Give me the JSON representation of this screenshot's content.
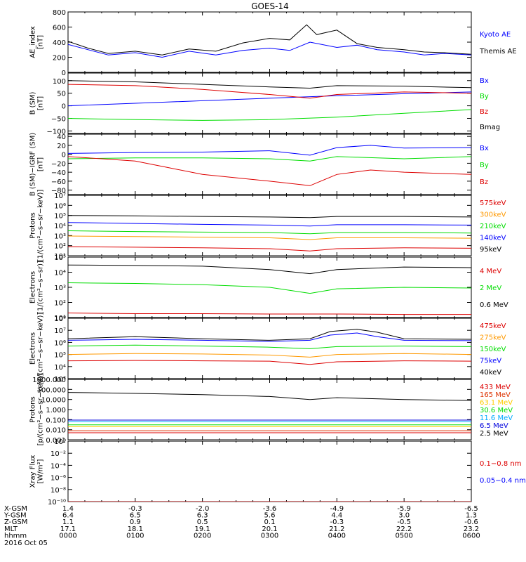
{
  "title": "GOES-14",
  "footer": {
    "rows": [
      {
        "label": "X-GSM",
        "values": [
          "1.4",
          "-0.3",
          "-2.0",
          "-3.6",
          "-4.9",
          "-5.9",
          "-6.5"
        ]
      },
      {
        "label": "Y-GSM",
        "values": [
          "6.4",
          "6.5",
          "6.3",
          "5.6",
          "4.4",
          "3.0",
          "1.3"
        ]
      },
      {
        "label": "Z-GSM",
        "values": [
          "1.1",
          "0.9",
          "0.5",
          "0.1",
          "-0.3",
          "-0.5",
          "-0.6"
        ]
      },
      {
        "label": "MLT",
        "values": [
          "17.1",
          "18.1",
          "19.1",
          "20.1",
          "21.2",
          "22.2",
          "23.2"
        ]
      },
      {
        "label": "hhmm",
        "values": [
          "0000",
          "0100",
          "0200",
          "0300",
          "0400",
          "0500",
          "0600"
        ]
      }
    ],
    "date": "2016 Oct 05"
  },
  "chart_data": [
    {
      "type": "line",
      "ylabel": "AE_index\n[nT]",
      "yscale": "linear",
      "ylim": [
        0,
        800
      ],
      "yticks": [
        0,
        200,
        400,
        600,
        800
      ],
      "yticklabels": [
        "0",
        "200",
        "400",
        "600",
        "800"
      ],
      "xlim": [
        0,
        6
      ],
      "series": [
        {
          "name": "Kyoto AE",
          "color": "#0000ff",
          "x": [
            0,
            0.3,
            0.6,
            1.0,
            1.4,
            1.8,
            2.2,
            2.6,
            3.0,
            3.3,
            3.6,
            4.0,
            4.3,
            4.6,
            5.0,
            5.3,
            5.6,
            6.0
          ],
          "values": [
            370,
            300,
            230,
            260,
            200,
            280,
            230,
            290,
            320,
            290,
            400,
            330,
            360,
            300,
            270,
            230,
            250,
            230
          ]
        },
        {
          "name": "Themis AE",
          "color": "#000000",
          "x": [
            0,
            0.3,
            0.6,
            1.0,
            1.4,
            1.8,
            2.2,
            2.6,
            3.0,
            3.3,
            3.55,
            3.7,
            4.0,
            4.3,
            4.6,
            5.0,
            5.3,
            5.6,
            6.0
          ],
          "values": [
            410,
            320,
            250,
            280,
            230,
            310,
            280,
            390,
            450,
            430,
            630,
            500,
            560,
            380,
            330,
            300,
            270,
            260,
            240
          ]
        }
      ]
    },
    {
      "type": "line",
      "ylabel": "B (SM)\n[nT]",
      "yscale": "linear",
      "ylim": [
        -110,
        130
      ],
      "yticks": [
        -100,
        -50,
        0,
        50,
        100
      ],
      "yticklabels": [
        "−100",
        "−50",
        "0",
        "50",
        "100"
      ],
      "xlim": [
        0,
        6
      ],
      "series": [
        {
          "name": "Bx",
          "color": "#0000ff",
          "x": [
            0,
            1,
            2,
            3,
            4,
            5,
            6
          ],
          "values": [
            0,
            10,
            20,
            30,
            40,
            48,
            55
          ]
        },
        {
          "name": "By",
          "color": "#00dd00",
          "x": [
            0,
            1,
            2,
            3,
            4,
            5,
            6
          ],
          "values": [
            -50,
            -55,
            -58,
            -55,
            -45,
            -30,
            -15
          ]
        },
        {
          "name": "Bz",
          "color": "#dd0000",
          "x": [
            0,
            1,
            2,
            3,
            3.6,
            4,
            5,
            6
          ],
          "values": [
            85,
            80,
            65,
            45,
            30,
            45,
            55,
            50
          ]
        },
        {
          "name": "Bmag",
          "color": "#000000",
          "x": [
            0,
            1,
            2,
            3,
            3.6,
            4,
            5,
            6
          ],
          "values": [
            100,
            95,
            85,
            75,
            70,
            80,
            78,
            72
          ]
        }
      ]
    },
    {
      "type": "line",
      "ylabel": "B (SM)−IGRF (SM)\n[nT]",
      "yscale": "linear",
      "ylim": [
        -90,
        45
      ],
      "yticks": [
        -80,
        -60,
        -40,
        -20,
        0,
        20,
        40
      ],
      "yticklabels": [
        "−80",
        "−60",
        "−40",
        "−20",
        "0",
        "20",
        "40"
      ],
      "xlim": [
        0,
        6
      ],
      "series": [
        {
          "name": "Bx",
          "color": "#0000ff",
          "x": [
            0,
            1,
            2,
            3,
            3.6,
            4,
            4.5,
            5,
            6
          ],
          "values": [
            2,
            4,
            5,
            8,
            -2,
            15,
            20,
            14,
            15
          ]
        },
        {
          "name": "By",
          "color": "#00dd00",
          "x": [
            0,
            1,
            2,
            3,
            3.6,
            4,
            5,
            6
          ],
          "values": [
            -10,
            -8,
            -8,
            -10,
            -15,
            -5,
            -10,
            -5
          ]
        },
        {
          "name": "Bz",
          "color": "#dd0000",
          "x": [
            0,
            0.5,
            1,
            1.5,
            2,
            3,
            3.6,
            4,
            4.5,
            5,
            6
          ],
          "values": [
            -5,
            -10,
            -15,
            -30,
            -45,
            -60,
            -70,
            -45,
            -35,
            -40,
            -45
          ]
        }
      ]
    },
    {
      "type": "line",
      "ylabel": "Protons\n[1/(cm²−s−sr−keV)]",
      "yscale": "log",
      "ylim": [
        10,
        10000000
      ],
      "yticks": [
        10,
        100,
        1000,
        10000,
        100000,
        1000000,
        10000000
      ],
      "yticklabels": [
        "10¹",
        "10²",
        "10³",
        "10⁴",
        "10⁵",
        "10⁶",
        "10⁷"
      ],
      "xlim": [
        0,
        6
      ],
      "series": [
        {
          "name": "575keV",
          "color": "#dd0000",
          "x": [
            0,
            1,
            2,
            3,
            3.6,
            4,
            5,
            6
          ],
          "values": [
            80,
            70,
            60,
            50,
            30,
            50,
            60,
            55
          ]
        },
        {
          "name": "300keV",
          "color": "#ff9900",
          "x": [
            0,
            1,
            2,
            3,
            3.6,
            4,
            5,
            6
          ],
          "values": [
            900,
            800,
            700,
            600,
            400,
            600,
            600,
            550
          ]
        },
        {
          "name": "210keV",
          "color": "#00dd00",
          "x": [
            0,
            1,
            2,
            3,
            3.6,
            4,
            5,
            6
          ],
          "values": [
            3000,
            2500,
            2200,
            2000,
            1500,
            2000,
            2000,
            1800
          ]
        },
        {
          "name": "140keV",
          "color": "#0000ff",
          "x": [
            0,
            1,
            2,
            3,
            3.6,
            4,
            5,
            6
          ],
          "values": [
            20000,
            16000,
            13000,
            11000,
            9000,
            12000,
            12000,
            11000
          ]
        },
        {
          "name": "95keV",
          "color": "#000000",
          "x": [
            0,
            1,
            2,
            3,
            3.6,
            4,
            5,
            6
          ],
          "values": [
            100000,
            90000,
            80000,
            70000,
            60000,
            80000,
            80000,
            70000
          ]
        }
      ]
    },
    {
      "type": "line",
      "ylabel": "Electrons\n[1/(cm²−s−sr)]",
      "yscale": "log",
      "ylim": [
        10,
        100000
      ],
      "yticks": [
        10,
        100,
        1000,
        10000,
        100000
      ],
      "yticklabels": [
        "10¹",
        "10²",
        "10³",
        "10⁴",
        "10⁵"
      ],
      "xlim": [
        0,
        6
      ],
      "series": [
        {
          "name": "4 MeV",
          "color": "#dd0000",
          "x": [
            0,
            1,
            2,
            3,
            4,
            5,
            6
          ],
          "values": [
            20,
            18,
            18,
            17,
            17,
            16,
            16
          ]
        },
        {
          "name": "2 MeV",
          "color": "#00dd00",
          "x": [
            0,
            1,
            2,
            3,
            3.6,
            4,
            5,
            6
          ],
          "values": [
            2000,
            1800,
            1500,
            1000,
            400,
            800,
            1000,
            900
          ]
        },
        {
          "name": "0.6 MeV",
          "color": "#000000",
          "x": [
            0,
            1,
            2,
            3,
            3.6,
            4,
            5,
            6
          ],
          "values": [
            30000,
            28000,
            25000,
            15000,
            8000,
            15000,
            22000,
            20000
          ]
        }
      ]
    },
    {
      "type": "line",
      "ylabel": "Electrons\n[1/(cm²−s−sr−keV)]",
      "yscale": "log",
      "ylim": [
        1000,
        100000000
      ],
      "yticks": [
        1000,
        10000,
        100000,
        1000000,
        10000000,
        100000000
      ],
      "yticklabels": [
        "10³",
        "10⁴",
        "10⁵",
        "10⁶",
        "10⁷",
        "10⁸"
      ],
      "xlim": [
        0,
        6
      ],
      "series": [
        {
          "name": "475keV",
          "color": "#dd0000",
          "x": [
            0,
            1,
            2,
            3,
            3.6,
            4,
            5,
            6
          ],
          "values": [
            30000,
            32000,
            30000,
            28000,
            15000,
            25000,
            30000,
            28000
          ]
        },
        {
          "name": "275keV",
          "color": "#ff9900",
          "x": [
            0,
            1,
            2,
            3,
            3.6,
            4,
            5,
            6
          ],
          "values": [
            100000,
            120000,
            110000,
            90000,
            60000,
            100000,
            120000,
            100000
          ]
        },
        {
          "name": "150keV",
          "color": "#00dd00",
          "x": [
            0,
            1,
            2,
            3,
            3.6,
            4,
            5,
            6
          ],
          "values": [
            500000,
            600000,
            500000,
            400000,
            300000,
            450000,
            500000,
            450000
          ]
        },
        {
          "name": "75keV",
          "color": "#0000ff",
          "x": [
            0,
            1,
            2,
            3,
            3.6,
            3.9,
            4.3,
            4.6,
            5,
            6
          ],
          "values": [
            1500000,
            1800000,
            1500000,
            1200000,
            1500000,
            4000000,
            6000000,
            3000000,
            1500000,
            1400000
          ]
        },
        {
          "name": "40keV",
          "color": "#000000",
          "x": [
            0,
            1,
            2,
            3,
            3.6,
            3.9,
            4.3,
            4.6,
            5,
            6
          ],
          "values": [
            2000000,
            3000000,
            2000000,
            1500000,
            2000000,
            8000000,
            12000000,
            7000000,
            2000000,
            1800000
          ]
        }
      ]
    },
    {
      "type": "line",
      "ylabel": "Protons\n[p/(cm²−s−sr−keV)]",
      "yscale": "log",
      "ylim": [
        0.001,
        1000
      ],
      "yticks": [
        0.001,
        0.01,
        0.1,
        1,
        10,
        100,
        1000
      ],
      "yticklabels": [
        "0.001",
        "0.010",
        "0.100",
        "1.000",
        "10.000",
        "100.000",
        "1000.000"
      ],
      "xlim": [
        0,
        6
      ],
      "series": [
        {
          "name": "433 MeV",
          "color": "#dd0000",
          "x": [
            0,
            6
          ],
          "values": [
            0.005,
            0.005
          ]
        },
        {
          "name": "165 MeV",
          "color": "#dd3300",
          "x": [
            0,
            6
          ],
          "values": [
            0.008,
            0.008
          ]
        },
        {
          "name": "63.1 MeV",
          "color": "#ffcc00",
          "x": [
            0,
            6
          ],
          "values": [
            0.02,
            0.02
          ]
        },
        {
          "name": "30.6 MeV",
          "color": "#00dd00",
          "x": [
            0,
            6
          ],
          "values": [
            0.03,
            0.03
          ]
        },
        {
          "name": "11.6 MeV",
          "color": "#00aaff",
          "x": [
            0,
            6
          ],
          "values": [
            0.06,
            0.06
          ]
        },
        {
          "name": "6.5 MeV",
          "color": "#0000dd",
          "x": [
            0,
            6
          ],
          "values": [
            0.09,
            0.09
          ]
        },
        {
          "name": "2.5 MeV",
          "color": "#000000",
          "x": [
            0,
            1,
            2,
            3,
            3.6,
            4,
            5,
            6
          ],
          "values": [
            50,
            40,
            30,
            20,
            10,
            15,
            10,
            8
          ]
        }
      ]
    },
    {
      "type": "line",
      "ylabel": "Xray Flux\n[W/m²]",
      "yscale": "log",
      "ylim": [
        1e-10,
        1
      ],
      "yticks": [
        1e-10,
        1e-08,
        1e-06,
        0.0001,
        0.01,
        1
      ],
      "yticklabels": [
        "10⁻¹⁰",
        "10⁻⁸",
        "10⁻⁶",
        "10⁻⁴",
        "10⁻²",
        "10⁰"
      ],
      "xlim": [
        0,
        6
      ],
      "series": [
        {
          "name": "0.1−0.8 nm",
          "color": "#dd0000",
          "x": [
            0,
            6
          ],
          "values": [
            1e-10,
            1e-10
          ]
        },
        {
          "name": "0.05−0.4 nm",
          "color": "#0000ff",
          "x": [],
          "values": []
        }
      ]
    }
  ]
}
